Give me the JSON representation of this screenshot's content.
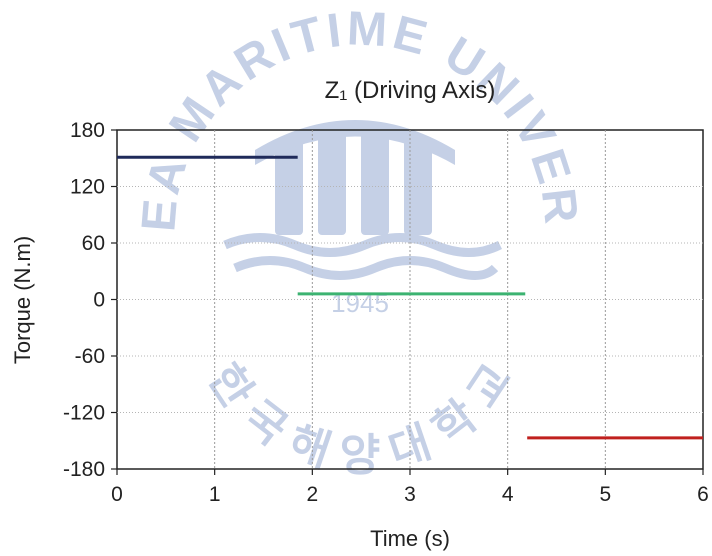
{
  "chart_data": {
    "type": "line",
    "title": "Z₁ (Driving Axis)",
    "xlabel": "Time (s)",
    "ylabel": "Torque (N.m)",
    "xlim": [
      0,
      6
    ],
    "ylim": [
      -180,
      180
    ],
    "xticks": [
      0,
      1,
      2,
      3,
      4,
      5,
      6
    ],
    "yticks": [
      180,
      120,
      60,
      0,
      -60,
      -120,
      -180
    ],
    "grid": true,
    "series": [
      {
        "color": "#1f2a5a",
        "x": [
          0,
          1.85
        ],
        "y": [
          151,
          151
        ]
      },
      {
        "color": "#3cb371",
        "x": [
          1.85,
          4.18
        ],
        "y": [
          6,
          6
        ]
      },
      {
        "color": "#c0201e",
        "x": [
          4.2,
          6
        ],
        "y": [
          -147,
          -147
        ]
      }
    ]
  },
  "watermark": {
    "text_top": "KOREA MARITIME UNIVERSITY",
    "text_bottom": "한 국 해 양 대 학 교",
    "year": "1945",
    "color": "#7f98c8"
  }
}
